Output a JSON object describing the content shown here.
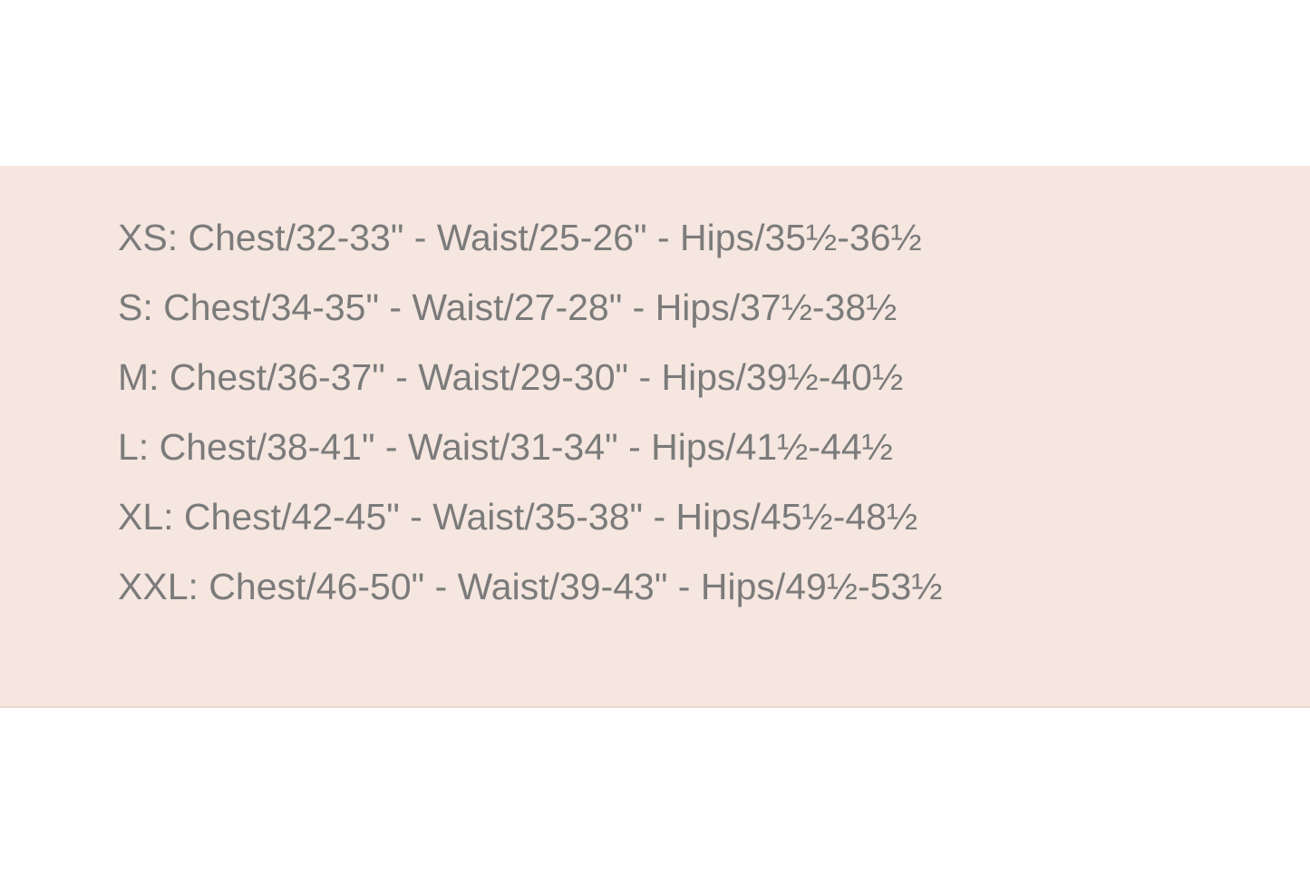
{
  "size_chart": {
    "rows": [
      "XS: Chest/32-33\" - Waist/25-26\" - Hips/35½-36½",
      "S: Chest/34-35\" - Waist/27-28\" - Hips/37½-38½",
      "M: Chest/36-37\" - Waist/29-30\" - Hips/39½-40½",
      "L: Chest/38-41\" - Waist/31-34\" - Hips/41½-44½",
      "XL: Chest/42-45\" - Waist/35-38\" - Hips/45½-48½",
      "XXL: Chest/46-50\" - Waist/39-43\" - Hips/49½-53½"
    ]
  },
  "colors": {
    "panel_background": "#f5e6df",
    "text": "#7b7b7b"
  }
}
